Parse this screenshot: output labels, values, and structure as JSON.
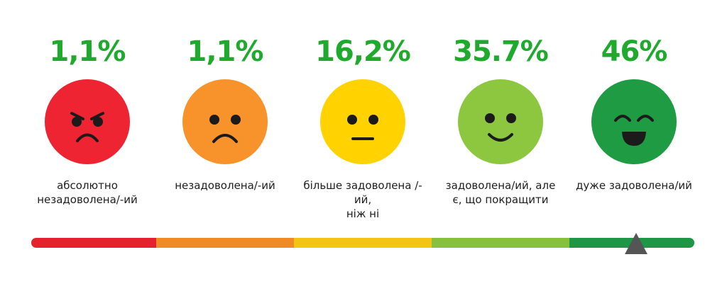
{
  "items": [
    {
      "percent": "1,1%",
      "label_line1": "абсолютно",
      "label_line2": "незадоволена/-ий",
      "color": "#ee2432",
      "mood": "angry"
    },
    {
      "percent": "1,1%",
      "label_line1": "незадоволена/-ий",
      "label_line2": "",
      "color": "#f7932a",
      "mood": "sad"
    },
    {
      "percent": "16,2%",
      "label_line1": "більше задоволена /-ий,",
      "label_line2": "ніж ні",
      "color": "#ffd200",
      "mood": "neutral"
    },
    {
      "percent": "35.7%",
      "label_line1": "задоволена/ий, але",
      "label_line2": "є, що покращити",
      "color": "#8dc63f",
      "mood": "happy"
    },
    {
      "percent": "46%",
      "label_line1": "дуже задоволена/ий",
      "label_line2": "",
      "color": "#1f9b44",
      "mood": "very-happy"
    }
  ],
  "scale": {
    "segment_colors": [
      "#e4212e",
      "#f08a24",
      "#f3c315",
      "#86c13d",
      "#1d9645"
    ],
    "marker_color": "#555555"
  }
}
